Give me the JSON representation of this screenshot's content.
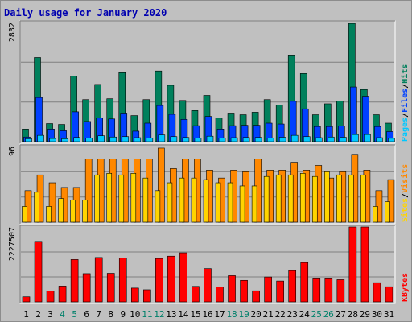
{
  "title": "Daily usage for January 2020",
  "colors": {
    "background": "#c0c0c0",
    "plot_bg": "#c0c0c0",
    "grid": "#7f7f7f",
    "title": "#0000b0",
    "hits": "#00805c",
    "files": "#0040ff",
    "pages": "#00c8ff",
    "visits": "#ff8800",
    "sites": "#ffd400",
    "kbytes": "#ff0000",
    "weekend_label": "#00806a",
    "weekday_label": "#000000"
  },
  "chart_data": [
    {
      "type": "bar",
      "panel": "top",
      "ymax_label": "2832",
      "ylim": [
        0,
        2832
      ],
      "legend_right": [
        "Pages",
        "/",
        "Files",
        "/",
        "Hits"
      ],
      "categories": [
        "1",
        "2",
        "3",
        "4",
        "5",
        "6",
        "7",
        "8",
        "9",
        "10",
        "11",
        "12",
        "13",
        "14",
        "15",
        "16",
        "17",
        "18",
        "19",
        "20",
        "21",
        "22",
        "23",
        "24",
        "25",
        "26",
        "27",
        "28",
        "29",
        "30",
        "31"
      ],
      "weekend_days": [
        "4",
        "5",
        "11",
        "12",
        "18",
        "19",
        "25",
        "26"
      ],
      "series": [
        {
          "name": "Hits",
          "values": [
            300,
            2000,
            430,
            410,
            1560,
            1000,
            1360,
            1020,
            1640,
            620,
            1000,
            1680,
            1340,
            980,
            740,
            1100,
            560,
            680,
            640,
            700,
            1000,
            870,
            2060,
            1620,
            640,
            900,
            970,
            2810,
            1240,
            640,
            440
          ]
        },
        {
          "name": "Files",
          "values": [
            110,
            1050,
            300,
            260,
            710,
            480,
            560,
            540,
            680,
            250,
            440,
            860,
            650,
            530,
            380,
            600,
            300,
            380,
            390,
            390,
            440,
            420,
            960,
            780,
            360,
            360,
            370,
            1300,
            1080,
            360,
            240
          ]
        },
        {
          "name": "Pages",
          "values": [
            70,
            150,
            75,
            70,
            100,
            90,
            140,
            110,
            120,
            95,
            90,
            160,
            120,
            100,
            90,
            130,
            90,
            95,
            100,
            100,
            90,
            105,
            150,
            120,
            95,
            110,
            105,
            170,
            170,
            95,
            80
          ]
        }
      ],
      "grid_fractions": [
        0.333,
        0.667
      ]
    },
    {
      "type": "bar",
      "panel": "middle",
      "ymax_label": "96",
      "ylim": [
        0,
        96
      ],
      "legend_right": [
        "Sites",
        "/",
        "Visits"
      ],
      "categories": [
        "1",
        "2",
        "3",
        "4",
        "5",
        "6",
        "7",
        "8",
        "9",
        "10",
        "11",
        "12",
        "13",
        "14",
        "15",
        "16",
        "17",
        "18",
        "19",
        "20",
        "21",
        "22",
        "23",
        "24",
        "25",
        "26",
        "27",
        "28",
        "29",
        "30",
        "31"
      ],
      "series": [
        {
          "name": "Visits",
          "values": [
            40,
            60,
            50,
            44,
            44,
            80,
            80,
            80,
            80,
            80,
            80,
            94,
            68,
            80,
            80,
            66,
            56,
            66,
            64,
            80,
            66,
            66,
            76,
            66,
            72,
            56,
            64,
            86,
            66,
            40,
            54
          ]
        },
        {
          "name": "Sites",
          "values": [
            20,
            38,
            20,
            30,
            28,
            28,
            60,
            62,
            60,
            62,
            56,
            40,
            50,
            56,
            56,
            54,
            50,
            50,
            46,
            46,
            58,
            60,
            60,
            62,
            58,
            64,
            60,
            60,
            60,
            20,
            26
          ]
        }
      ],
      "grid_fractions": [
        0.333,
        0.667
      ]
    },
    {
      "type": "bar",
      "panel": "bottom",
      "ymax_label": "2227507",
      "ylim": [
        0,
        2227507
      ],
      "legend_right": [
        "KBytes"
      ],
      "categories": [
        "1",
        "2",
        "3",
        "4",
        "5",
        "6",
        "7",
        "8",
        "9",
        "10",
        "11",
        "12",
        "13",
        "14",
        "15",
        "16",
        "17",
        "18",
        "19",
        "20",
        "21",
        "22",
        "23",
        "24",
        "25",
        "26",
        "27",
        "28",
        "29",
        "30",
        "31"
      ],
      "series": [
        {
          "name": "KBytes",
          "values": [
            150000,
            1800000,
            320000,
            470000,
            1260000,
            840000,
            1320000,
            850000,
            1310000,
            410000,
            360000,
            1290000,
            1360000,
            1460000,
            460000,
            990000,
            440000,
            780000,
            640000,
            330000,
            740000,
            620000,
            930000,
            1170000,
            710000,
            710000,
            660000,
            2227507,
            2227507,
            570000,
            450000
          ]
        }
      ],
      "grid_fractions": [
        0.333,
        0.667
      ]
    }
  ]
}
